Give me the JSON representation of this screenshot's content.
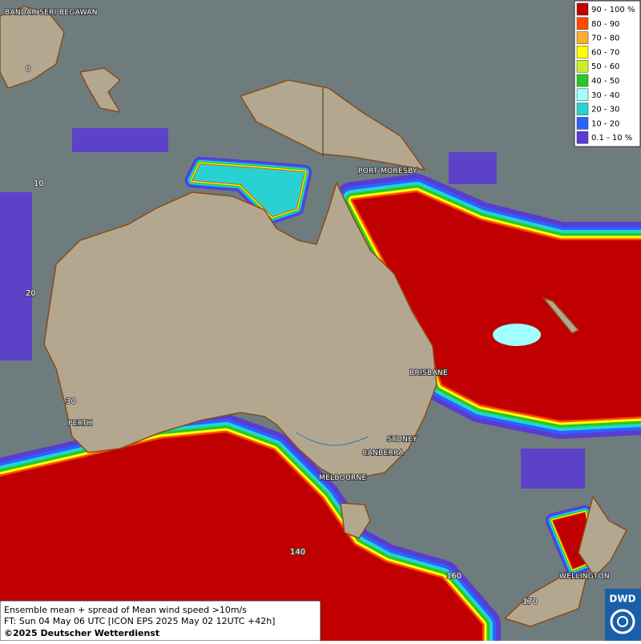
{
  "map": {
    "legend": [
      {
        "label": "90 - 100 %",
        "color": "#c00000"
      },
      {
        "label": "80 - 90",
        "color": "#ff4a00"
      },
      {
        "label": "70 - 80",
        "color": "#ffae30"
      },
      {
        "label": "60 - 70",
        "color": "#ffff00"
      },
      {
        "label": "50 - 60",
        "color": "#c8f028"
      },
      {
        "label": "40 - 50",
        "color": "#28c828"
      },
      {
        "label": "30 - 40",
        "color": "#a0ffff"
      },
      {
        "label": "20 - 30",
        "color": "#28d2d2"
      },
      {
        "label": "10 - 20",
        "color": "#2864ff"
      },
      {
        "label": "0.1 - 10 %",
        "color": "#5a3cd2"
      }
    ],
    "cities": [
      "BANDAR SERI BEGAWAN",
      "PORT MORESBY",
      "BRISBANE",
      "SYDNEY",
      "CANBERRA",
      "MELBOURNE",
      "PERTH",
      "WELLINGTON"
    ],
    "grid_labels": [
      "0",
      "10",
      "20",
      "30",
      "140",
      "160",
      "170"
    ],
    "footer": [
      "Ensemble mean + spread of Mean wind speed >10m/s",
      "FT: Sun 04 May 06 UTC [ICON EPS 2025 May 02 12UTC +42h]",
      "©2025 Deutscher Wetterdienst"
    ],
    "logo": "DWD"
  }
}
